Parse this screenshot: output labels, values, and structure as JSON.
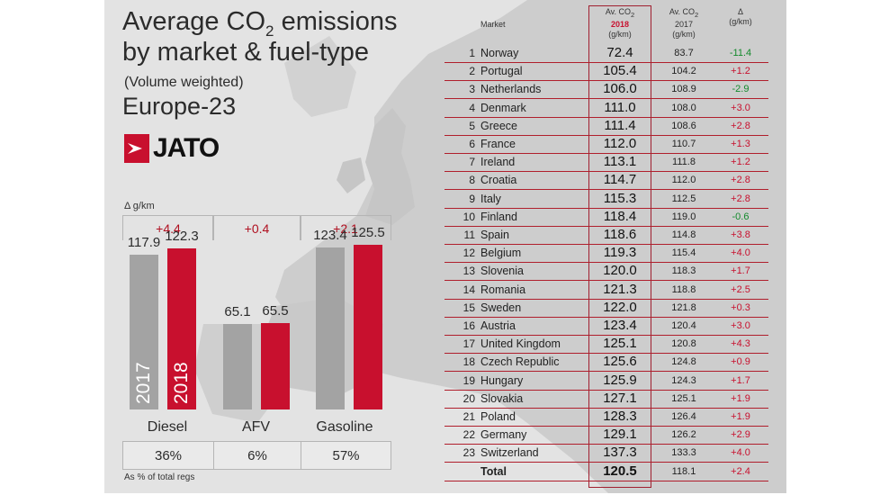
{
  "title_line1": "Average CO",
  "title_sub": "2",
  "title_line1_end": " emissions",
  "title_line2": "by market & fuel-type",
  "subtitle": "(Volume weighted)",
  "region": "Europe-23",
  "brand": "JATO",
  "colors": {
    "accent": "#c8102e",
    "bar2017": "#a3a3a3",
    "bar2018": "#c8102e",
    "positive": "#c8102e",
    "negative": "#138a2c"
  },
  "delta_label": "Δ g/km",
  "share_label": "As % of total regs",
  "chart_data": {
    "type": "bar",
    "categories": [
      "Diesel",
      "AFV",
      "Gasoline"
    ],
    "series": [
      {
        "name": "2017",
        "values": [
          117.9,
          65.1,
          123.4
        ]
      },
      {
        "name": "2018",
        "values": [
          122.3,
          65.5,
          125.5
        ]
      }
    ],
    "deltas": [
      "+4.4",
      "+0.4",
      "+2.1"
    ],
    "shares": [
      "36%",
      "6%",
      "57%"
    ],
    "ylim": [
      0,
      130
    ]
  },
  "table": {
    "headers": {
      "market": "Market",
      "av2018_line1": "Av. CO",
      "av2018_line1_sub": "2",
      "av2018_year": "2018",
      "av2018_unit": "(g/km)",
      "av2017_line1": "Av. CO",
      "av2017_line1_sub": "2",
      "av2017_year": "2017",
      "av2017_unit": "(g/km)",
      "delta_symbol": "Δ",
      "delta_unit": "(g/km)"
    },
    "rows": [
      {
        "rank": "1",
        "market": "Norway",
        "v2018": "72.4",
        "v2017": "83.7",
        "delta": "-11.4"
      },
      {
        "rank": "2",
        "market": "Portugal",
        "v2018": "105.4",
        "v2017": "104.2",
        "delta": "+1.2"
      },
      {
        "rank": "3",
        "market": "Netherlands",
        "v2018": "106.0",
        "v2017": "108.9",
        "delta": "-2.9"
      },
      {
        "rank": "4",
        "market": "Denmark",
        "v2018": "111.0",
        "v2017": "108.0",
        "delta": "+3.0"
      },
      {
        "rank": "5",
        "market": "Greece",
        "v2018": "111.4",
        "v2017": "108.6",
        "delta": "+2.8"
      },
      {
        "rank": "6",
        "market": "France",
        "v2018": "112.0",
        "v2017": "110.7",
        "delta": "+1.3"
      },
      {
        "rank": "7",
        "market": "Ireland",
        "v2018": "113.1",
        "v2017": "111.8",
        "delta": "+1.2"
      },
      {
        "rank": "8",
        "market": "Croatia",
        "v2018": "114.7",
        "v2017": "112.0",
        "delta": "+2.8"
      },
      {
        "rank": "9",
        "market": "Italy",
        "v2018": "115.3",
        "v2017": "112.5",
        "delta": "+2.8"
      },
      {
        "rank": "10",
        "market": "Finland",
        "v2018": "118.4",
        "v2017": "119.0",
        "delta": "-0.6"
      },
      {
        "rank": "11",
        "market": "Spain",
        "v2018": "118.6",
        "v2017": "114.8",
        "delta": "+3.8"
      },
      {
        "rank": "12",
        "market": "Belgium",
        "v2018": "119.3",
        "v2017": "115.4",
        "delta": "+4.0"
      },
      {
        "rank": "13",
        "market": "Slovenia",
        "v2018": "120.0",
        "v2017": "118.3",
        "delta": "+1.7"
      },
      {
        "rank": "14",
        "market": "Romania",
        "v2018": "121.3",
        "v2017": "118.8",
        "delta": "+2.5"
      },
      {
        "rank": "15",
        "market": "Sweden",
        "v2018": "122.0",
        "v2017": "121.8",
        "delta": "+0.3"
      },
      {
        "rank": "16",
        "market": "Austria",
        "v2018": "123.4",
        "v2017": "120.4",
        "delta": "+3.0"
      },
      {
        "rank": "17",
        "market": "United Kingdom",
        "v2018": "125.1",
        "v2017": "120.8",
        "delta": "+4.3"
      },
      {
        "rank": "18",
        "market": "Czech Republic",
        "v2018": "125.6",
        "v2017": "124.8",
        "delta": "+0.9"
      },
      {
        "rank": "19",
        "market": "Hungary",
        "v2018": "125.9",
        "v2017": "124.3",
        "delta": "+1.7"
      },
      {
        "rank": "20",
        "market": "Slovakia",
        "v2018": "127.1",
        "v2017": "125.1",
        "delta": "+1.9"
      },
      {
        "rank": "21",
        "market": "Poland",
        "v2018": "128.3",
        "v2017": "126.4",
        "delta": "+1.9"
      },
      {
        "rank": "22",
        "market": "Germany",
        "v2018": "129.1",
        "v2017": "126.2",
        "delta": "+2.9"
      },
      {
        "rank": "23",
        "market": "Switzerland",
        "v2018": "137.3",
        "v2017": "133.3",
        "delta": "+4.0"
      }
    ],
    "total": {
      "rank": "",
      "market": "Total",
      "v2018": "120.5",
      "v2017": "118.1",
      "delta": "+2.4"
    }
  }
}
